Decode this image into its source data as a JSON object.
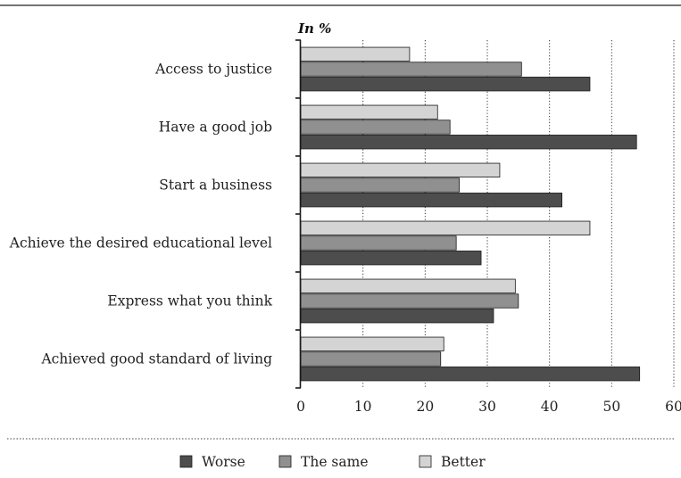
{
  "chart_data": {
    "type": "bar",
    "orientation": "horizontal",
    "unit_label": "In %",
    "categories": [
      "Access to justice",
      "Have a good job",
      "Start a business",
      "Achieve the desired educational level",
      "Express what you think",
      "Achieved good standard of living"
    ],
    "series": [
      {
        "name": "Better",
        "color": "#d4d4d4",
        "values": [
          17.5,
          22.0,
          32.0,
          46.5,
          34.5,
          23.0
        ]
      },
      {
        "name": "The same",
        "color": "#909090",
        "values": [
          35.5,
          24.0,
          25.5,
          25.0,
          35.0,
          22.5
        ]
      },
      {
        "name": "Worse",
        "color": "#4d4d4d",
        "values": [
          46.5,
          54.0,
          42.0,
          29.0,
          31.0,
          54.5
        ]
      }
    ],
    "legend_order": [
      "Worse",
      "The same",
      "Better"
    ],
    "xlim": [
      0,
      60
    ],
    "xticks": [
      0,
      10,
      20,
      30,
      40,
      50,
      60
    ],
    "grid": "vertical-dotted",
    "legend_position": "bottom"
  }
}
